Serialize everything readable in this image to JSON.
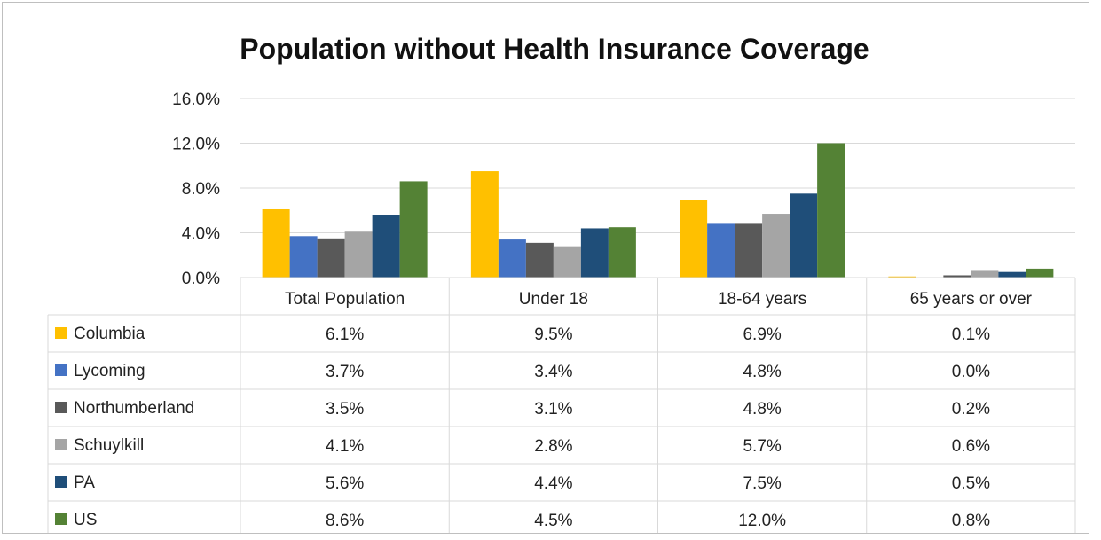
{
  "chart_data": {
    "type": "bar",
    "title": "Population without Health Insurance Coverage",
    "categories": [
      "Total Population",
      "Under 18",
      "18-64 years",
      "65 years or over"
    ],
    "y_ticks": [
      "0.0%",
      "4.0%",
      "8.0%",
      "12.0%",
      "16.0%"
    ],
    "ylim": [
      0,
      16
    ],
    "grid": true,
    "legend": "data-table",
    "series": [
      {
        "name": "Columbia",
        "color": "#FFC000",
        "values": [
          6.1,
          9.5,
          6.9,
          0.1
        ],
        "labels": [
          "6.1%",
          "9.5%",
          "6.9%",
          "0.1%"
        ]
      },
      {
        "name": "Lycoming",
        "color": "#4472C4",
        "values": [
          3.7,
          3.4,
          4.8,
          0.0
        ],
        "labels": [
          "3.7%",
          "3.4%",
          "4.8%",
          "0.0%"
        ]
      },
      {
        "name": "Northumberland",
        "color": "#595959",
        "values": [
          3.5,
          3.1,
          4.8,
          0.2
        ],
        "labels": [
          "3.5%",
          "3.1%",
          "4.8%",
          "0.2%"
        ]
      },
      {
        "name": "Schuylkill",
        "color": "#A5A5A5",
        "values": [
          4.1,
          2.8,
          5.7,
          0.6
        ],
        "labels": [
          "4.1%",
          "2.8%",
          "5.7%",
          "0.6%"
        ]
      },
      {
        "name": "PA",
        "color": "#1F4E79",
        "values": [
          5.6,
          4.4,
          7.5,
          0.5
        ],
        "labels": [
          "5.6%",
          "4.4%",
          "7.5%",
          "0.5%"
        ]
      },
      {
        "name": "US",
        "color": "#548235",
        "values": [
          8.6,
          4.5,
          12.0,
          0.8
        ],
        "labels": [
          "8.6%",
          "4.5%",
          "12.0%",
          "0.8%"
        ]
      }
    ]
  }
}
